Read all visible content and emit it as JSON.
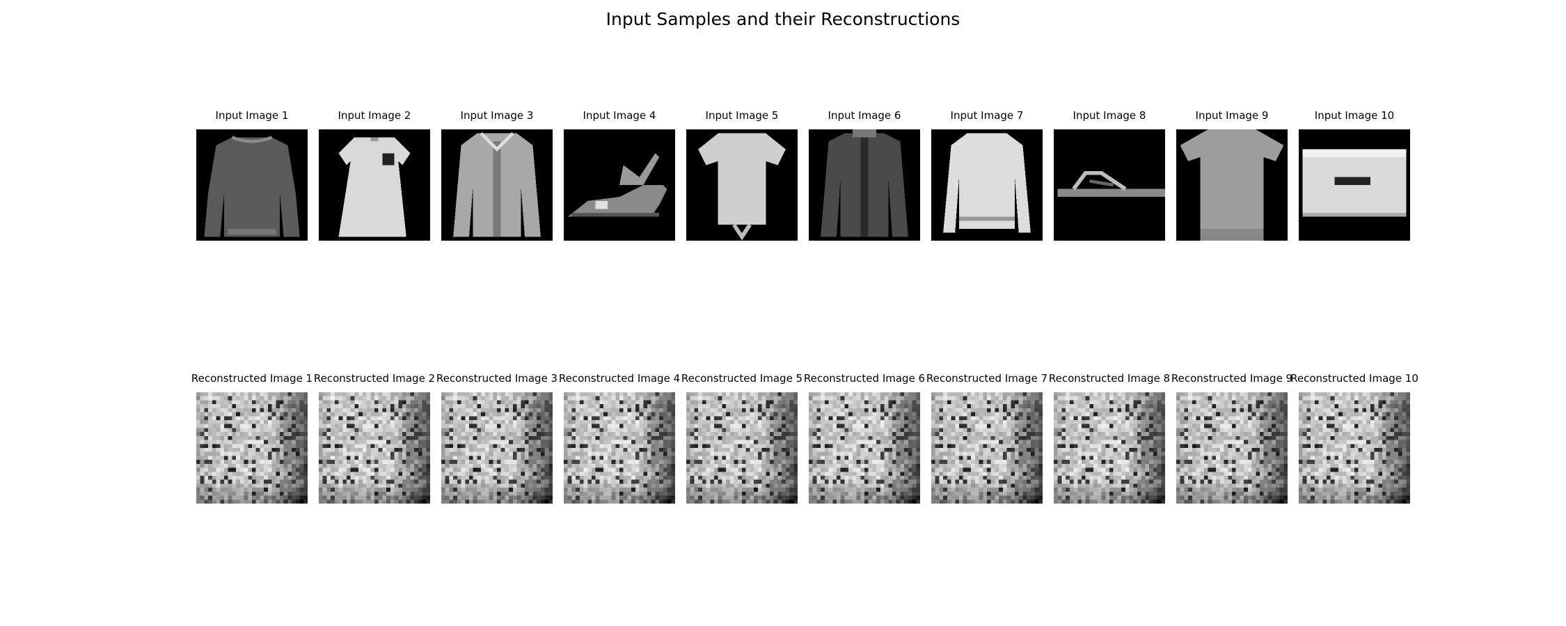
{
  "figure": {
    "title": "Input Samples and their Reconstructions"
  },
  "input_row": {
    "panels": [
      {
        "label": "Input Image 1",
        "content": "grayscale Fashion-MNIST image: long-sleeve pullover"
      },
      {
        "label": "Input Image 2",
        "content": "grayscale Fashion-MNIST image: dress"
      },
      {
        "label": "Input Image 3",
        "content": "grayscale Fashion-MNIST image: coat"
      },
      {
        "label": "Input Image 4",
        "content": "grayscale Fashion-MNIST image: sandal"
      },
      {
        "label": "Input Image 5",
        "content": "grayscale Fashion-MNIST image: t-shirt"
      },
      {
        "label": "Input Image 6",
        "content": "grayscale Fashion-MNIST image: dark coat"
      },
      {
        "label": "Input Image 7",
        "content": "grayscale Fashion-MNIST image: long-sleeve shirt"
      },
      {
        "label": "Input Image 8",
        "content": "grayscale Fashion-MNIST image: flip-flop sandal"
      },
      {
        "label": "Input Image 9",
        "content": "grayscale Fashion-MNIST image: t-shirt"
      },
      {
        "label": "Input Image 10",
        "content": "grayscale Fashion-MNIST image: bag"
      }
    ]
  },
  "recon_row": {
    "panels": [
      {
        "label": "Reconstructed Image 1"
      },
      {
        "label": "Reconstructed Image 2"
      },
      {
        "label": "Reconstructed Image 3"
      },
      {
        "label": "Reconstructed Image 4"
      },
      {
        "label": "Reconstructed Image 5"
      },
      {
        "label": "Reconstructed Image 6"
      },
      {
        "label": "Reconstructed Image 7"
      },
      {
        "label": "Reconstructed Image 8"
      },
      {
        "label": "Reconstructed Image 9"
      },
      {
        "label": "Reconstructed Image 10"
      }
    ]
  }
}
